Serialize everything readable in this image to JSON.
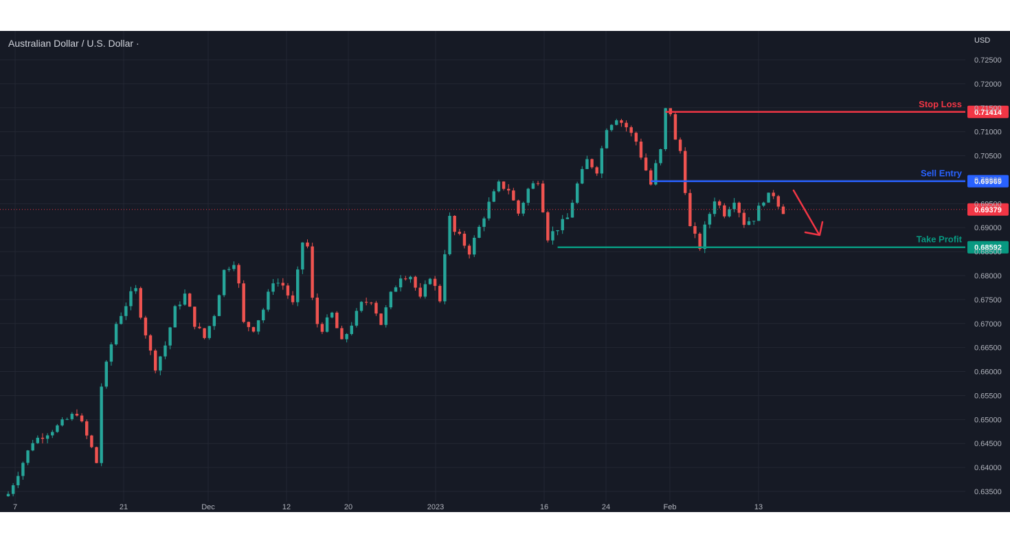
{
  "chart_data": {
    "type": "candlestick",
    "title": "Australian Dollar / U.S. Dollar ·",
    "currency": "USD",
    "y_axis": {
      "ticks": [
        "0.72500",
        "0.72000",
        "0.71500",
        "0.71000",
        "0.70500",
        "0.70000",
        "0.69500",
        "0.69000",
        "0.68500",
        "0.68000",
        "0.67500",
        "0.67000",
        "0.66500",
        "0.66000",
        "0.65500",
        "0.65000",
        "0.64500",
        "0.64000",
        "0.63500"
      ],
      "range": [
        0.633,
        0.728
      ]
    },
    "x_axis": {
      "tick_labels": [
        "7",
        "21",
        "Dec",
        "12",
        "20",
        "2023",
        "16",
        "24",
        "Feb",
        "13"
      ]
    },
    "price_path": [
      [
        0,
        0.6345
      ],
      [
        5,
        0.6455
      ],
      [
        10,
        0.6485
      ],
      [
        14,
        0.6515
      ],
      [
        17,
        0.644
      ],
      [
        18,
        0.641
      ],
      [
        19,
        0.657
      ],
      [
        22,
        0.67
      ],
      [
        25,
        0.676
      ],
      [
        26,
        0.677
      ],
      [
        27,
        0.672
      ],
      [
        29,
        0.664
      ],
      [
        30,
        0.661
      ],
      [
        32,
        0.6655
      ],
      [
        34,
        0.673
      ],
      [
        36,
        0.676
      ],
      [
        38,
        0.67
      ],
      [
        40,
        0.667
      ],
      [
        42,
        0.672
      ],
      [
        44,
        0.681
      ],
      [
        46,
        0.683
      ],
      [
        47,
        0.678
      ],
      [
        48,
        0.67
      ],
      [
        50,
        0.669
      ],
      [
        52,
        0.673
      ],
      [
        54,
        0.679
      ],
      [
        56,
        0.678
      ],
      [
        58,
        0.674
      ],
      [
        60,
        0.687
      ],
      [
        61,
        0.686
      ],
      [
        62,
        0.675
      ],
      [
        63,
        0.67
      ],
      [
        64,
        0.669
      ],
      [
        66,
        0.672
      ],
      [
        68,
        0.666
      ],
      [
        70,
        0.67
      ],
      [
        72,
        0.674
      ],
      [
        74,
        0.675
      ],
      [
        76,
        0.67
      ],
      [
        78,
        0.676
      ],
      [
        80,
        0.68
      ],
      [
        82,
        0.68
      ],
      [
        84,
        0.675
      ],
      [
        86,
        0.68
      ],
      [
        88,
        0.675
      ],
      [
        89,
        0.685
      ],
      [
        90,
        0.692
      ],
      [
        91,
        0.689
      ],
      [
        92,
        0.688
      ],
      [
        94,
        0.685
      ],
      [
        96,
        0.69
      ],
      [
        98,
        0.695
      ],
      [
        100,
        0.699
      ],
      [
        102,
        0.698
      ],
      [
        104,
        0.693
      ],
      [
        106,
        0.698
      ],
      [
        108,
        0.7
      ],
      [
        110,
        0.688
      ],
      [
        112,
        0.69
      ],
      [
        114,
        0.692
      ],
      [
        116,
        0.699
      ],
      [
        118,
        0.704
      ],
      [
        120,
        0.702
      ],
      [
        122,
        0.711
      ],
      [
        124,
        0.713
      ],
      [
        126,
        0.711
      ],
      [
        128,
        0.708
      ],
      [
        130,
        0.702
      ],
      [
        131,
        0.699
      ],
      [
        132,
        0.703
      ],
      [
        133,
        0.706
      ],
      [
        134,
        0.7145
      ],
      [
        135,
        0.714
      ],
      [
        136,
        0.708
      ],
      [
        137,
        0.706
      ],
      [
        138,
        0.698
      ],
      [
        139,
        0.69
      ],
      [
        140,
        0.688
      ],
      [
        141,
        0.686
      ],
      [
        142,
        0.69
      ],
      [
        144,
        0.696
      ],
      [
        146,
        0.693
      ],
      [
        148,
        0.696
      ],
      [
        150,
        0.691
      ],
      [
        152,
        0.692
      ],
      [
        154,
        0.696
      ],
      [
        156,
        0.697
      ],
      [
        157,
        0.695
      ],
      [
        158,
        0.6935
      ]
    ],
    "levels": [
      {
        "name": "Stop Loss",
        "value": 0.71414,
        "label": "0.71414",
        "color": "#f23645",
        "x_start": 134
      },
      {
        "name": "Sell Entry",
        "value": 0.69969,
        "label": "0.69969",
        "color": "#2962ff",
        "x_start": 131
      },
      {
        "name": "Take Profit",
        "value": 0.68592,
        "label": "0.68592",
        "color": "#089981",
        "x_start": 112
      }
    ],
    "last_price": {
      "value": 0.69379,
      "label": "0.69379",
      "color": "#f23645"
    },
    "arrow": {
      "direction": "down",
      "color": "#f23645"
    },
    "grid": true,
    "up_color": "#26a69a",
    "down_color": "#ef5350"
  }
}
